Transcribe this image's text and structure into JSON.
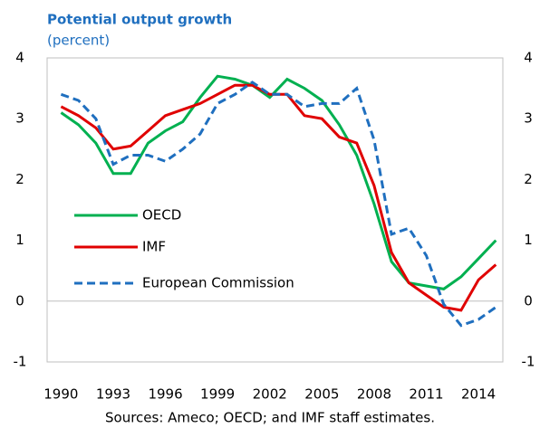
{
  "chart_data": {
    "type": "line",
    "title": "Potential output growth",
    "subtitle": "(percent)",
    "source": "Sources: Ameco; OECD; and IMF staff estimates.",
    "x": [
      1990,
      1991,
      1992,
      1993,
      1994,
      1995,
      1996,
      1997,
      1998,
      1999,
      2000,
      2001,
      2002,
      2003,
      2004,
      2005,
      2006,
      2007,
      2008,
      2009,
      2010,
      2011,
      2012,
      2013,
      2014,
      2015
    ],
    "series": [
      {
        "name": "OECD",
        "color": "#00b050",
        "style": "solid",
        "values": [
          3.1,
          2.9,
          2.6,
          2.1,
          2.1,
          2.6,
          2.8,
          2.95,
          3.35,
          3.7,
          3.65,
          3.55,
          3.35,
          3.65,
          3.5,
          3.3,
          2.9,
          2.4,
          1.6,
          0.65,
          0.3,
          0.25,
          0.2,
          0.4,
          0.7,
          1.0
        ]
      },
      {
        "name": "IMF",
        "color": "#e00000",
        "style": "solid",
        "values": [
          3.2,
          3.05,
          2.85,
          2.5,
          2.55,
          2.8,
          3.05,
          3.15,
          3.25,
          3.4,
          3.55,
          3.55,
          3.4,
          3.4,
          3.05,
          3.0,
          2.7,
          2.6,
          1.9,
          0.8,
          0.3,
          0.1,
          -0.1,
          -0.15,
          0.35,
          0.6
        ]
      },
      {
        "name": "European Commission",
        "color": "#1f6fbf",
        "style": "dashed",
        "values": [
          3.4,
          3.3,
          3.0,
          2.25,
          2.4,
          2.4,
          2.3,
          2.5,
          2.75,
          3.25,
          3.4,
          3.6,
          3.4,
          3.4,
          3.2,
          3.25,
          3.25,
          3.5,
          2.65,
          1.1,
          1.2,
          0.75,
          -0.05,
          -0.4,
          -0.3,
          -0.1
        ]
      }
    ],
    "xlim": [
      1989.2,
      2015.4
    ],
    "xticks": [
      1990,
      1993,
      1996,
      1999,
      2002,
      2005,
      2008,
      2011,
      2014
    ],
    "ylim": [
      -1,
      4
    ],
    "yticks": [
      -1,
      0,
      1,
      2,
      3,
      4
    ],
    "y2lim": [
      -1,
      4
    ],
    "y2ticks": [
      -1,
      0,
      1,
      2,
      3,
      4
    ],
    "legend": "left"
  }
}
